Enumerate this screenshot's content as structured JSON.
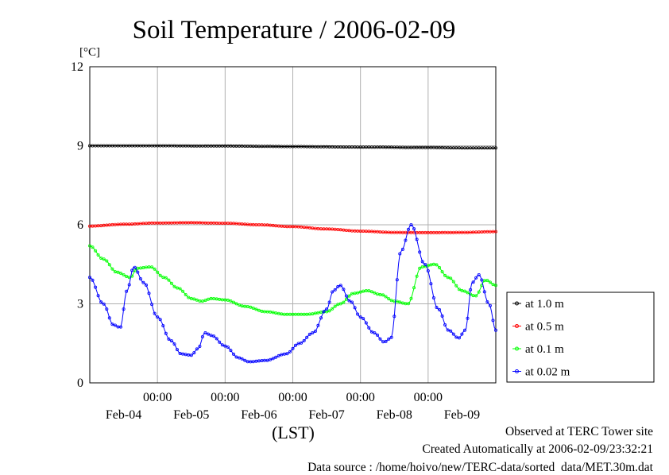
{
  "chart_data": {
    "type": "line",
    "title": "Soil Temperature / 2006-02-09",
    "ylabel": "[°C]",
    "xlabel": "(LST)",
    "ylim": [
      0,
      12
    ],
    "yticks": [
      "0",
      "3",
      "6",
      "9",
      "12"
    ],
    "xlim": [
      0,
      6
    ],
    "xticks_time": [
      {
        "x": 1.0,
        "label": "00:00"
      },
      {
        "x": 2.0,
        "label": "00:00"
      },
      {
        "x": 3.0,
        "label": "00:00"
      },
      {
        "x": 4.0,
        "label": "00:00"
      },
      {
        "x": 5.0,
        "label": "00:00"
      }
    ],
    "xticks_date": [
      {
        "x": 0.5,
        "label": "Feb-04"
      },
      {
        "x": 1.5,
        "label": "Feb-05"
      },
      {
        "x": 2.5,
        "label": "Feb-06"
      },
      {
        "x": 3.5,
        "label": "Feb-07"
      },
      {
        "x": 4.5,
        "label": "Feb-08"
      },
      {
        "x": 5.5,
        "label": "Feb-09"
      }
    ],
    "grid": true,
    "legend_position": "right",
    "series": [
      {
        "name": "at 1.0 m",
        "color": "#000000",
        "x": [
          0,
          1,
          2,
          3,
          4,
          5,
          5.5,
          6
        ],
        "y": [
          9.0,
          9.0,
          8.99,
          8.97,
          8.95,
          8.93,
          8.92,
          8.92
        ]
      },
      {
        "name": "at 0.5 m",
        "color": "#ff0000",
        "x": [
          0,
          0.5,
          1.0,
          1.5,
          2.0,
          2.5,
          3.0,
          3.5,
          4.0,
          4.5,
          5.0,
          5.5,
          6.0
        ],
        "y": [
          5.95,
          6.02,
          6.07,
          6.08,
          6.06,
          6.0,
          5.93,
          5.84,
          5.76,
          5.71,
          5.7,
          5.71,
          5.74
        ]
      },
      {
        "name": "at 0.1 m",
        "color": "#00ff00",
        "x": [
          0,
          0.2,
          0.4,
          0.6,
          0.7,
          0.9,
          1.1,
          1.3,
          1.5,
          1.65,
          1.8,
          2.0,
          2.3,
          2.6,
          2.9,
          3.2,
          3.5,
          3.7,
          3.9,
          4.1,
          4.3,
          4.5,
          4.7,
          4.9,
          5.1,
          5.3,
          5.5,
          5.7,
          5.85,
          6.0
        ],
        "y": [
          5.2,
          4.7,
          4.2,
          4.0,
          4.35,
          4.4,
          4.0,
          3.6,
          3.2,
          3.1,
          3.2,
          3.15,
          2.9,
          2.7,
          2.6,
          2.6,
          2.7,
          3.0,
          3.4,
          3.5,
          3.35,
          3.1,
          3.0,
          4.4,
          4.5,
          4.0,
          3.5,
          3.3,
          3.9,
          3.7
        ]
      },
      {
        "name": "at 0.02 m",
        "color": "#0000ff",
        "x": [
          0,
          0.2,
          0.35,
          0.45,
          0.55,
          0.65,
          0.8,
          1.0,
          1.2,
          1.35,
          1.5,
          1.6,
          1.7,
          1.8,
          2.0,
          2.2,
          2.35,
          2.6,
          2.9,
          3.1,
          3.3,
          3.5,
          3.6,
          3.7,
          3.85,
          4.0,
          4.2,
          4.35,
          4.45,
          4.6,
          4.75,
          4.95,
          5.15,
          5.3,
          5.45,
          5.55,
          5.65,
          5.75,
          5.9,
          6.0
        ],
        "y": [
          4.0,
          3.0,
          2.2,
          2.1,
          3.5,
          4.4,
          3.8,
          2.5,
          1.6,
          1.1,
          1.05,
          1.3,
          1.9,
          1.8,
          1.4,
          0.95,
          0.8,
          0.85,
          1.1,
          1.5,
          1.9,
          2.8,
          3.5,
          3.7,
          3.1,
          2.5,
          1.9,
          1.55,
          1.7,
          5.0,
          6.0,
          4.5,
          2.8,
          2.0,
          1.7,
          2.0,
          3.8,
          4.1,
          3.0,
          2.0
        ]
      }
    ]
  },
  "footer": {
    "line1": "Observed at TERC Tower site",
    "line2": "Created Automatically at 2006-02-09/23:32:21",
    "line3": "Data source : /home/hoivo/new/TERC-data/sorted  data/MET.30m.dat"
  }
}
